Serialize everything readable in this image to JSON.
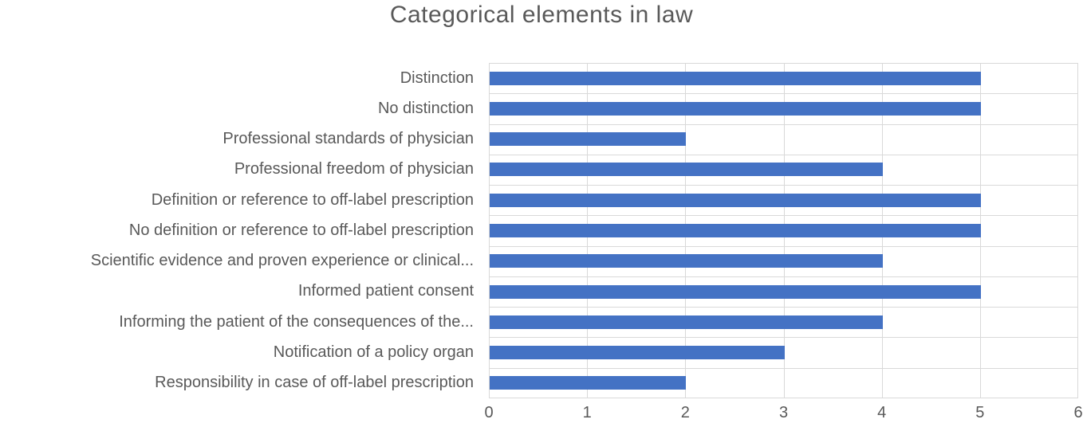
{
  "chart_data": {
    "type": "bar",
    "orientation": "horizontal",
    "title": "Categorical elements in law",
    "categories": [
      "Distinction",
      "No distinction",
      "Professional standards of physician",
      "Professional freedom of physician",
      "Definition or reference to off-label prescription",
      "No definition or reference to off-label prescription",
      "Scientific evidence and proven experience or clinical...",
      "Informed patient consent",
      "Informing the patient of the consequences of the...",
      "Notification of a policy organ",
      "Responsibility in case of off-label prescription"
    ],
    "values": [
      5,
      5,
      2,
      4,
      5,
      5,
      4,
      5,
      4,
      3,
      2
    ],
    "xlabel": "",
    "ylabel": "",
    "xlim": [
      0,
      6
    ],
    "xticks": [
      0,
      1,
      2,
      3,
      4,
      5,
      6
    ],
    "xtick_labels": [
      "0",
      "1",
      "2",
      "3",
      "4",
      "5",
      "6"
    ],
    "grid": true,
    "legend": "none",
    "colors": {
      "bar": "#4472C4",
      "gridline": "#D9D9D9",
      "axis_text": "#595959",
      "title_text": "#595959"
    }
  }
}
